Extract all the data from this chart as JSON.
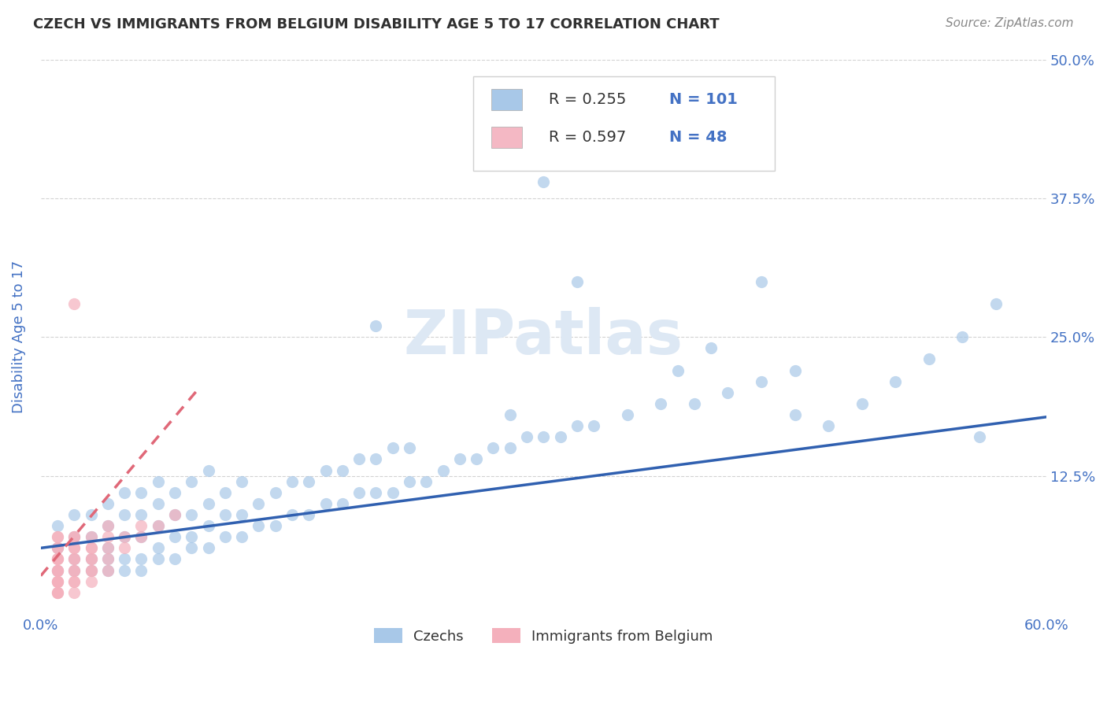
{
  "title": "CZECH VS IMMIGRANTS FROM BELGIUM DISABILITY AGE 5 TO 17 CORRELATION CHART",
  "source_text": "Source: ZipAtlas.com",
  "ylabel": "Disability Age 5 to 17",
  "xlim": [
    0.0,
    0.6
  ],
  "ylim": [
    0.0,
    0.5
  ],
  "ytick_labels": [
    "12.5%",
    "25.0%",
    "37.5%",
    "50.0%"
  ],
  "ytick_positions": [
    0.125,
    0.25,
    0.375,
    0.5
  ],
  "legend_labels": [
    "Czechs",
    "Immigrants from Belgium"
  ],
  "legend_r_n": [
    {
      "R": "0.255",
      "N": "101",
      "color": "#a8c8e8"
    },
    {
      "R": "0.597",
      "N": "48",
      "color": "#f4b8c4"
    }
  ],
  "czech_color": "#a8c8e8",
  "belgium_color": "#f4b0bc",
  "czech_line_color": "#3060b0",
  "belgium_line_color": "#e06878",
  "background_color": "#ffffff",
  "grid_color": "#c8c8c8",
  "title_color": "#303030",
  "tick_label_color": "#4472c4",
  "czech_scatter_x": [
    0.01,
    0.01,
    0.01,
    0.02,
    0.02,
    0.02,
    0.02,
    0.03,
    0.03,
    0.03,
    0.03,
    0.04,
    0.04,
    0.04,
    0.04,
    0.04,
    0.05,
    0.05,
    0.05,
    0.05,
    0.05,
    0.06,
    0.06,
    0.06,
    0.06,
    0.06,
    0.07,
    0.07,
    0.07,
    0.07,
    0.07,
    0.08,
    0.08,
    0.08,
    0.08,
    0.09,
    0.09,
    0.09,
    0.09,
    0.1,
    0.1,
    0.1,
    0.1,
    0.11,
    0.11,
    0.11,
    0.12,
    0.12,
    0.12,
    0.13,
    0.13,
    0.14,
    0.14,
    0.15,
    0.15,
    0.16,
    0.16,
    0.17,
    0.17,
    0.18,
    0.18,
    0.19,
    0.19,
    0.2,
    0.2,
    0.21,
    0.21,
    0.22,
    0.22,
    0.23,
    0.24,
    0.25,
    0.26,
    0.27,
    0.28,
    0.29,
    0.3,
    0.31,
    0.32,
    0.33,
    0.35,
    0.37,
    0.39,
    0.41,
    0.43,
    0.45,
    0.47,
    0.49,
    0.51,
    0.53,
    0.55,
    0.57,
    0.3,
    0.32,
    0.38,
    0.4,
    0.45,
    0.2,
    0.56,
    0.43,
    0.28
  ],
  "czech_scatter_y": [
    0.04,
    0.06,
    0.08,
    0.04,
    0.05,
    0.07,
    0.09,
    0.04,
    0.05,
    0.07,
    0.09,
    0.04,
    0.05,
    0.06,
    0.08,
    0.1,
    0.04,
    0.05,
    0.07,
    0.09,
    0.11,
    0.04,
    0.05,
    0.07,
    0.09,
    0.11,
    0.05,
    0.06,
    0.08,
    0.1,
    0.12,
    0.05,
    0.07,
    0.09,
    0.11,
    0.06,
    0.07,
    0.09,
    0.12,
    0.06,
    0.08,
    0.1,
    0.13,
    0.07,
    0.09,
    0.11,
    0.07,
    0.09,
    0.12,
    0.08,
    0.1,
    0.08,
    0.11,
    0.09,
    0.12,
    0.09,
    0.12,
    0.1,
    0.13,
    0.1,
    0.13,
    0.11,
    0.14,
    0.11,
    0.14,
    0.11,
    0.15,
    0.12,
    0.15,
    0.12,
    0.13,
    0.14,
    0.14,
    0.15,
    0.15,
    0.16,
    0.16,
    0.16,
    0.17,
    0.17,
    0.18,
    0.19,
    0.19,
    0.2,
    0.21,
    0.22,
    0.17,
    0.19,
    0.21,
    0.23,
    0.25,
    0.28,
    0.39,
    0.3,
    0.22,
    0.24,
    0.18,
    0.26,
    0.16,
    0.3,
    0.18
  ],
  "belgium_scatter_x": [
    0.01,
    0.01,
    0.01,
    0.01,
    0.01,
    0.01,
    0.01,
    0.01,
    0.01,
    0.01,
    0.01,
    0.01,
    0.01,
    0.01,
    0.01,
    0.01,
    0.01,
    0.02,
    0.02,
    0.02,
    0.02,
    0.02,
    0.02,
    0.02,
    0.02,
    0.02,
    0.02,
    0.02,
    0.02,
    0.03,
    0.03,
    0.03,
    0.03,
    0.03,
    0.03,
    0.03,
    0.03,
    0.04,
    0.04,
    0.04,
    0.04,
    0.04,
    0.05,
    0.05,
    0.06,
    0.06,
    0.07,
    0.08
  ],
  "belgium_scatter_y": [
    0.02,
    0.02,
    0.02,
    0.03,
    0.03,
    0.03,
    0.03,
    0.04,
    0.04,
    0.04,
    0.05,
    0.05,
    0.05,
    0.06,
    0.06,
    0.07,
    0.07,
    0.02,
    0.03,
    0.03,
    0.04,
    0.04,
    0.05,
    0.05,
    0.06,
    0.06,
    0.07,
    0.07,
    0.28,
    0.03,
    0.04,
    0.04,
    0.05,
    0.05,
    0.06,
    0.06,
    0.07,
    0.04,
    0.05,
    0.06,
    0.07,
    0.08,
    0.06,
    0.07,
    0.07,
    0.08,
    0.08,
    0.09
  ],
  "czech_trend_x": [
    0.0,
    0.6
  ],
  "czech_trend_y": [
    0.06,
    0.178
  ],
  "belgium_trend_x": [
    0.0,
    0.095
  ],
  "belgium_trend_y": [
    0.035,
    0.205
  ]
}
